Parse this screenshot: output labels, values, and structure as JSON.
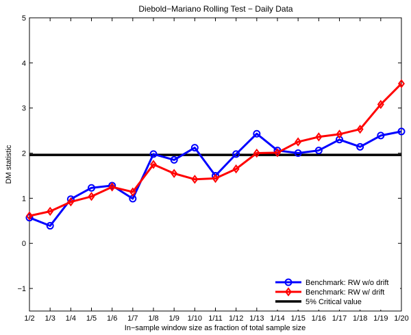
{
  "chart_data": {
    "type": "line",
    "title": "Diebold−Mariano Rolling Test − Daily Data",
    "xlabel": "In−sample window size as fraction of total sample size",
    "ylabel": "DM statistic",
    "categories": [
      "1/2",
      "1/3",
      "1/4",
      "1/5",
      "1/6",
      "1/7",
      "1/8",
      "1/9",
      "1/10",
      "1/11",
      "1/12",
      "1/13",
      "1/14",
      "1/15",
      "1/16",
      "1/17",
      "1/18",
      "1/19",
      "1/20"
    ],
    "ylim": [
      -1.5,
      5
    ],
    "yticks": [
      -1,
      0,
      1,
      2,
      3,
      4,
      5
    ],
    "ytick_labels": [
      "−1",
      "0",
      "1",
      "2",
      "3",
      "4",
      "5"
    ],
    "grid": false,
    "legend_position": "bottom-right",
    "series": [
      {
        "name": "Benchmark: RW w/o drift",
        "color": "#0000ff",
        "marker": "circle",
        "values": [
          0.57,
          0.39,
          0.98,
          1.23,
          1.28,
          0.99,
          1.98,
          1.85,
          2.12,
          1.5,
          1.98,
          2.43,
          2.06,
          2.0,
          2.06,
          2.3,
          2.14,
          2.39,
          2.48
        ]
      },
      {
        "name": "Benchmark: RW w/ drift",
        "color": "#ff0000",
        "marker": "diamond",
        "values": [
          0.61,
          0.71,
          0.92,
          1.04,
          1.25,
          1.14,
          1.75,
          1.55,
          1.42,
          1.44,
          1.65,
          2.0,
          2.01,
          2.25,
          2.36,
          2.42,
          2.53,
          3.08,
          3.54
        ]
      }
    ],
    "reference_line": {
      "name": "5% Critical value",
      "value": 1.96,
      "color": "#000000"
    }
  }
}
